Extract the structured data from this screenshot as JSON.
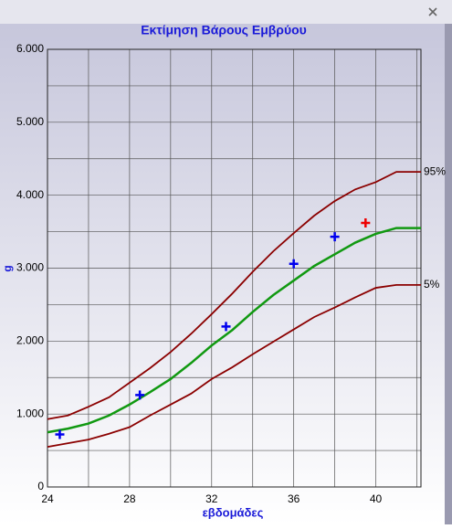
{
  "chart_data": {
    "type": "line",
    "title": "Εκτίμηση Βάρους Εμβρύου",
    "x_label": "εβδομάδες",
    "y_label": "g",
    "xlim": [
      24,
      42.2
    ],
    "ylim": [
      0,
      6000
    ],
    "xticks": [
      24,
      28,
      32,
      36,
      40
    ],
    "xminor": [
      26,
      30,
      34,
      38,
      42
    ],
    "yticks": [
      {
        "value": 0,
        "label": "0"
      },
      {
        "value": 1000,
        "label": "1.000"
      },
      {
        "value": 2000,
        "label": "2.000"
      },
      {
        "value": 3000,
        "label": "3.000"
      },
      {
        "value": 4000,
        "label": "4.000"
      },
      {
        "value": 5000,
        "label": "5.000"
      },
      {
        "value": 6000,
        "label": "6.000"
      }
    ],
    "yminor": [
      500,
      1500,
      2500,
      3500,
      4500,
      5500
    ],
    "grid": true,
    "x": [
      24,
      25,
      26,
      27,
      28,
      29,
      30,
      31,
      32,
      33,
      34,
      35,
      36,
      37,
      38,
      39,
      40,
      41,
      42.2
    ],
    "series": [
      {
        "name": "95%",
        "color": "#8b0000",
        "values": [
          930,
          980,
          1100,
          1230,
          1430,
          1630,
          1850,
          2100,
          2370,
          2650,
          2950,
          3230,
          3480,
          3720,
          3920,
          4080,
          4180,
          4320,
          4320
        ]
      },
      {
        "color": "#119911",
        "values": [
          750,
          800,
          870,
          980,
          1130,
          1300,
          1480,
          1700,
          1940,
          2150,
          2400,
          2630,
          2830,
          3030,
          3190,
          3350,
          3470,
          3550,
          3550
        ]
      },
      {
        "name": "5%",
        "color": "#8b0000",
        "values": [
          550,
          600,
          650,
          730,
          820,
          980,
          1130,
          1280,
          1480,
          1640,
          1820,
          1990,
          2160,
          2330,
          2460,
          2600,
          2730,
          2770,
          2770
        ]
      }
    ],
    "points": [
      {
        "color": "#0000ee",
        "x": [
          24.6,
          28.5,
          32.7,
          36,
          38
        ],
        "values": [
          720,
          1260,
          2200,
          3060,
          3430
        ]
      },
      {
        "color": "#ee0000",
        "x": [
          39.5
        ],
        "values": [
          3620
        ]
      }
    ]
  }
}
